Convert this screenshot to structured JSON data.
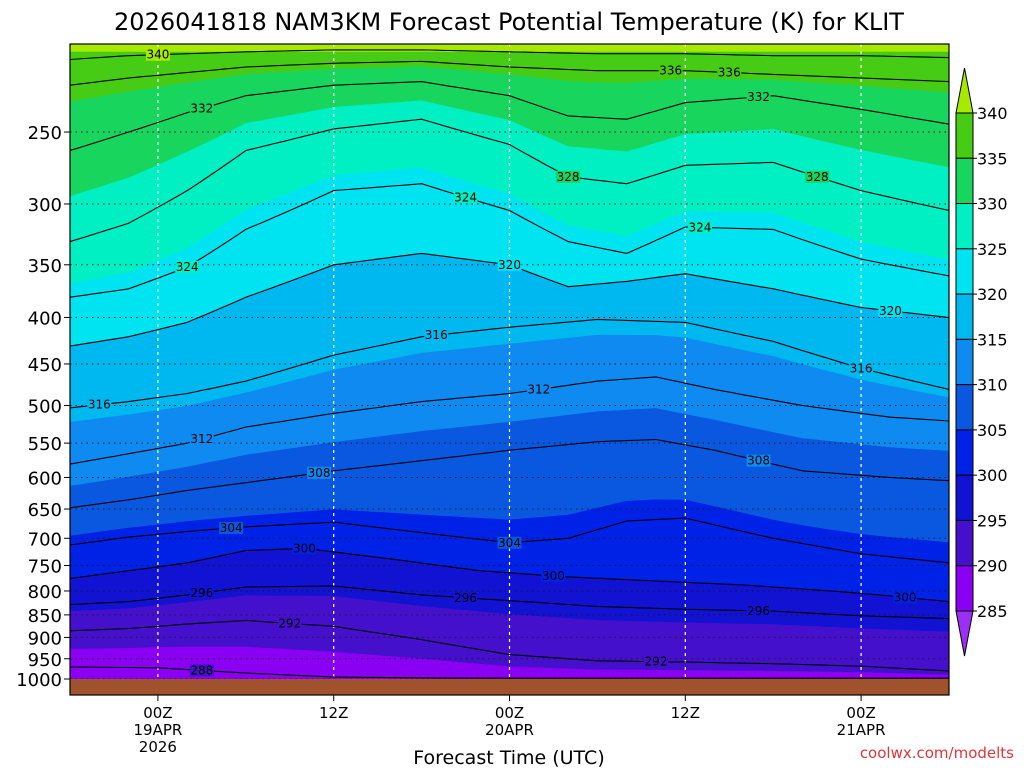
{
  "chart_data": {
    "type": "heatmap",
    "title": "2026041818 NAM3KM Forecast Potential Temperature (K) for KLIT",
    "xlabel": "Forecast Time (UTC)",
    "ylabel": "",
    "credit": "coolwx.com/modelts",
    "x_range_hours": [
      0,
      60
    ],
    "y_range_hPa": [
      1000,
      200
    ],
    "y_ticks": [
      "250",
      "300",
      "350",
      "400",
      "450",
      "500",
      "550",
      "600",
      "650",
      "700",
      "750",
      "800",
      "850",
      "900",
      "950",
      "1000"
    ],
    "x_ticks": [
      {
        "hour": 6,
        "label": "00Z",
        "date": "19APR",
        "year": "2026"
      },
      {
        "hour": 18,
        "label": "12Z",
        "date": "",
        "year": ""
      },
      {
        "hour": 30,
        "label": "00Z",
        "date": "20APR",
        "year": ""
      },
      {
        "hour": 42,
        "label": "12Z",
        "date": "",
        "year": ""
      },
      {
        "hour": 54,
        "label": "00Z",
        "date": "21APR",
        "year": ""
      }
    ],
    "colorbar_levels": [
      "340",
      "335",
      "330",
      "325",
      "320",
      "315",
      "310",
      "305",
      "300",
      "295",
      "290",
      "285"
    ],
    "colorbar_colors": [
      "#a6ea00",
      "#46cc14",
      "#18d55e",
      "#00f0c4",
      "#00e4f2",
      "#00b8f0",
      "#0e8af0",
      "#0a58e0",
      "#0022e6",
      "#1212d2",
      "#4410cc",
      "#8a00f2",
      "#9a30f2"
    ],
    "ground_color": "#a0522d",
    "isentropes": [
      {
        "level": 288,
        "label": "288",
        "points": [
          [
            0,
            970
          ],
          [
            6,
            972
          ],
          [
            12,
            985
          ],
          [
            18,
            995
          ],
          [
            24,
            997
          ],
          [
            30,
            998
          ],
          [
            36,
            998
          ],
          [
            42,
            998
          ],
          [
            48,
            998
          ],
          [
            54,
            998
          ],
          [
            60,
            998
          ]
        ]
      },
      {
        "level": 292,
        "label": "292",
        "points": [
          [
            0,
            885
          ],
          [
            4,
            880
          ],
          [
            8,
            870
          ],
          [
            12,
            862
          ],
          [
            18,
            875
          ],
          [
            24,
            905
          ],
          [
            30,
            940
          ],
          [
            36,
            955
          ],
          [
            42,
            958
          ],
          [
            48,
            962
          ],
          [
            54,
            968
          ],
          [
            60,
            980
          ]
        ]
      },
      {
        "level": 296,
        "label": "296",
        "points": [
          [
            0,
            828
          ],
          [
            4,
            822
          ],
          [
            8,
            808
          ],
          [
            12,
            792
          ],
          [
            18,
            790
          ],
          [
            24,
            808
          ],
          [
            30,
            820
          ],
          [
            36,
            832
          ],
          [
            42,
            838
          ],
          [
            48,
            842
          ],
          [
            54,
            852
          ],
          [
            60,
            858
          ]
        ]
      },
      {
        "level": 300,
        "label": "300",
        "points": [
          [
            0,
            775
          ],
          [
            4,
            760
          ],
          [
            8,
            745
          ],
          [
            12,
            722
          ],
          [
            16,
            718
          ],
          [
            22,
            738
          ],
          [
            28,
            760
          ],
          [
            34,
            772
          ],
          [
            40,
            780
          ],
          [
            46,
            788
          ],
          [
            52,
            800
          ],
          [
            56,
            810
          ],
          [
            60,
            822
          ]
        ]
      },
      {
        "level": 304,
        "label": "304",
        "points": [
          [
            0,
            712
          ],
          [
            4,
            698
          ],
          [
            8,
            688
          ],
          [
            12,
            680
          ],
          [
            18,
            672
          ],
          [
            24,
            690
          ],
          [
            30,
            708
          ],
          [
            34,
            700
          ],
          [
            38,
            670
          ],
          [
            42,
            665
          ],
          [
            48,
            700
          ],
          [
            54,
            728
          ],
          [
            60,
            745
          ]
        ]
      },
      {
        "level": 308,
        "label": "308",
        "points": [
          [
            0,
            648
          ],
          [
            4,
            635
          ],
          [
            8,
            620
          ],
          [
            12,
            608
          ],
          [
            18,
            590
          ],
          [
            24,
            575
          ],
          [
            30,
            560
          ],
          [
            36,
            548
          ],
          [
            40,
            545
          ],
          [
            44,
            560
          ],
          [
            50,
            590
          ],
          [
            56,
            600
          ],
          [
            60,
            605
          ]
        ]
      },
      {
        "level": 312,
        "label": "312",
        "points": [
          [
            0,
            580
          ],
          [
            4,
            565
          ],
          [
            8,
            550
          ],
          [
            12,
            528
          ],
          [
            18,
            510
          ],
          [
            24,
            495
          ],
          [
            30,
            485
          ],
          [
            36,
            470
          ],
          [
            40,
            465
          ],
          [
            44,
            480
          ],
          [
            50,
            500
          ],
          [
            56,
            515
          ],
          [
            60,
            520
          ]
        ]
      },
      {
        "level": 316,
        "label": "316",
        "points": [
          [
            0,
            503
          ],
          [
            4,
            495
          ],
          [
            8,
            485
          ],
          [
            12,
            470
          ],
          [
            18,
            440
          ],
          [
            24,
            420
          ],
          [
            30,
            410
          ],
          [
            36,
            402
          ],
          [
            42,
            405
          ],
          [
            48,
            425
          ],
          [
            54,
            455
          ],
          [
            60,
            480
          ]
        ]
      },
      {
        "level": 320,
        "label": "320",
        "points": [
          [
            0,
            430
          ],
          [
            4,
            420
          ],
          [
            8,
            405
          ],
          [
            12,
            380
          ],
          [
            18,
            350
          ],
          [
            24,
            340
          ],
          [
            30,
            350
          ],
          [
            34,
            370
          ],
          [
            38,
            365
          ],
          [
            42,
            358
          ],
          [
            48,
            372
          ],
          [
            54,
            390
          ],
          [
            60,
            400
          ]
        ]
      },
      {
        "level": 324,
        "label": "324",
        "points": [
          [
            0,
            380
          ],
          [
            4,
            372
          ],
          [
            8,
            352
          ],
          [
            12,
            320
          ],
          [
            18,
            290
          ],
          [
            24,
            285
          ],
          [
            30,
            305
          ],
          [
            34,
            330
          ],
          [
            38,
            340
          ],
          [
            42,
            318
          ],
          [
            48,
            320
          ],
          [
            54,
            345
          ],
          [
            60,
            360
          ]
        ]
      },
      {
        "level": 328,
        "label": "328",
        "points": [
          [
            0,
            330
          ],
          [
            4,
            315
          ],
          [
            8,
            290
          ],
          [
            12,
            262
          ],
          [
            18,
            248
          ],
          [
            24,
            242
          ],
          [
            30,
            258
          ],
          [
            34,
            280
          ],
          [
            38,
            285
          ],
          [
            42,
            272
          ],
          [
            48,
            270
          ],
          [
            54,
            290
          ],
          [
            60,
            305
          ]
        ]
      },
      {
        "level": 332,
        "label": "332",
        "points": [
          [
            0,
            262
          ],
          [
            4,
            250
          ],
          [
            8,
            238
          ],
          [
            12,
            228
          ],
          [
            18,
            222
          ],
          [
            24,
            220
          ],
          [
            30,
            228
          ],
          [
            34,
            240
          ],
          [
            38,
            242
          ],
          [
            42,
            232
          ],
          [
            48,
            228
          ],
          [
            54,
            236
          ],
          [
            60,
            245
          ]
        ]
      },
      {
        "level": 336,
        "label": "336",
        "points": [
          [
            0,
            222
          ],
          [
            4,
            218
          ],
          [
            8,
            215
          ],
          [
            12,
            212
          ],
          [
            18,
            210
          ],
          [
            24,
            209
          ],
          [
            30,
            212
          ],
          [
            36,
            214
          ],
          [
            42,
            214
          ],
          [
            48,
            216
          ],
          [
            54,
            218
          ],
          [
            60,
            220
          ]
        ]
      },
      {
        "level": 340,
        "label": "340",
        "points": [
          [
            0,
            208
          ],
          [
            4,
            206
          ],
          [
            8,
            205
          ],
          [
            12,
            204
          ],
          [
            18,
            203
          ],
          [
            24,
            203
          ],
          [
            30,
            204
          ],
          [
            36,
            205
          ],
          [
            42,
            205
          ],
          [
            48,
            206
          ],
          [
            54,
            206
          ],
          [
            60,
            207
          ]
        ]
      }
    ]
  }
}
